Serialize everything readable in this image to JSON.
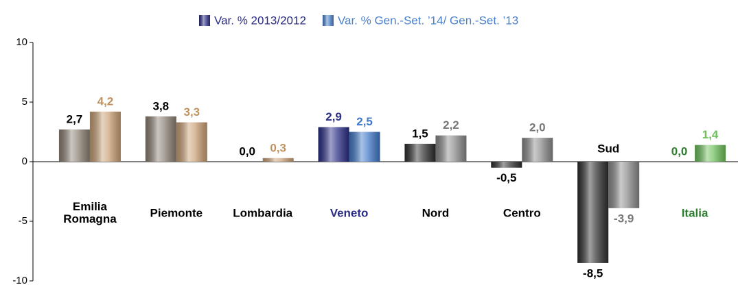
{
  "chart_data": {
    "type": "bar",
    "categories": [
      "Emilia Romagna",
      "Piemonte",
      "Lombardia",
      "Veneto",
      "Nord",
      "Centro",
      "Sud",
      "Italia"
    ],
    "category_colors": [
      "#000000",
      "#000000",
      "#000000",
      "#2b2d86",
      "#000000",
      "#000000",
      "#000000",
      "#2e7d32"
    ],
    "series": [
      {
        "name": "Var. % 2013/2012",
        "color": "#2b2d86",
        "values": [
          2.7,
          3.8,
          0.0,
          2.9,
          1.5,
          -0.5,
          -8.5,
          0.0
        ],
        "value_labels": [
          "2,7",
          "3,8",
          "0,0",
          "2,9",
          "1,5",
          "-0,5",
          "-8,5",
          "0,0"
        ],
        "bar_colors": [
          "#8c8073",
          "#8c8073",
          "#8c8073",
          "#2b2d86",
          "#2e2e2e",
          "#2e2e2e",
          "#2e2e2e",
          "#2e7d32"
        ],
        "label_colors": [
          "#000000",
          "#000000",
          "#000000",
          "#2b2d86",
          "#000000",
          "#000000",
          "#000000",
          "#2e7d32"
        ]
      },
      {
        "name": "Var. % Gen.-Set. ’14/ Gen.-Set. ’13",
        "color": "#4a80cc",
        "values": [
          4.2,
          3.3,
          0.3,
          2.5,
          2.2,
          2.0,
          -3.9,
          1.4
        ],
        "value_labels": [
          "4,2",
          "3,3",
          "0,3",
          "2,5",
          "2,2",
          "2,0",
          "-3,9",
          "1,4"
        ],
        "bar_colors": [
          "#c9a074",
          "#c9a074",
          "#c9a074",
          "#3f78c8",
          "#8a8a8a",
          "#8a8a8a",
          "#8a8a8a",
          "#6cc05a"
        ],
        "label_colors": [
          "#c0925e",
          "#c0925e",
          "#c0925e",
          "#3f78c8",
          "#777777",
          "#777777",
          "#777777",
          "#6cc05a"
        ]
      }
    ],
    "ylim": [
      -10,
      10
    ],
    "yticks": [
      -10,
      -5,
      0,
      5,
      10
    ]
  }
}
